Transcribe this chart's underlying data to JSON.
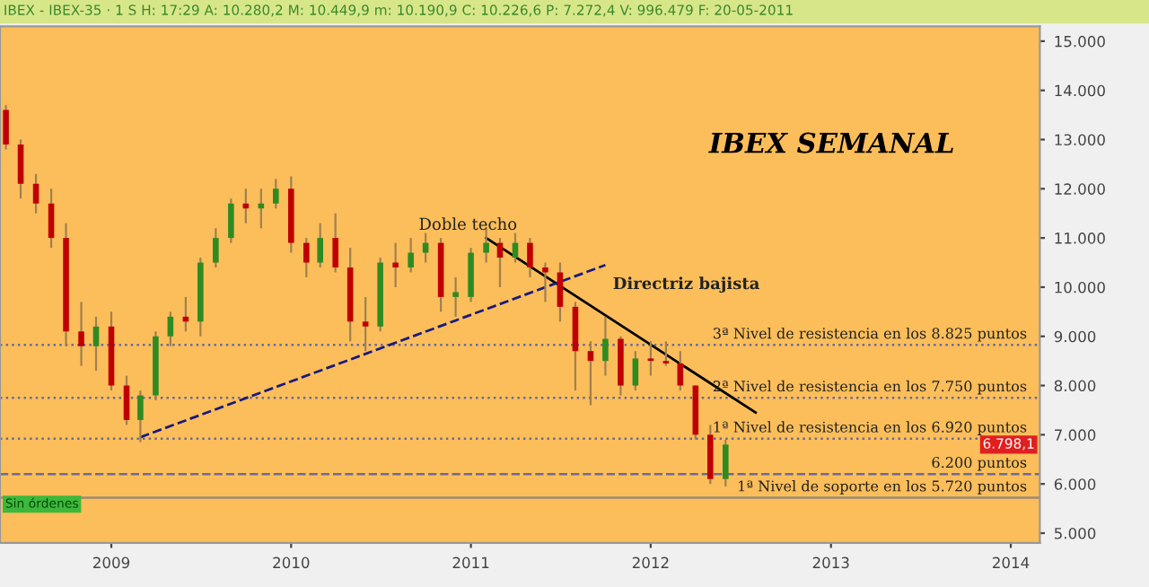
{
  "chart_data": {
    "type": "candlestick",
    "title": "IBEX SEMANAL",
    "x": [
      "2008-06",
      "2008-07",
      "2008-08",
      "2008-09",
      "2008-10",
      "2008-11",
      "2008-12",
      "2009-01",
      "2009-02",
      "2009-03",
      "2009-04",
      "2009-05",
      "2009-06",
      "2009-07",
      "2009-08",
      "2009-09",
      "2009-10",
      "2009-11",
      "2009-12",
      "2010-01",
      "2010-02",
      "2010-03",
      "2010-04",
      "2010-05",
      "2010-06",
      "2010-07",
      "2010-08",
      "2010-09",
      "2010-10",
      "2010-11",
      "2010-12",
      "2011-01",
      "2011-02",
      "2011-03",
      "2011-04",
      "2011-05",
      "2011-06",
      "2011-07",
      "2011-08",
      "2011-09",
      "2011-10",
      "2011-11",
      "2011-12",
      "2012-01",
      "2012-02",
      "2012-03",
      "2012-04",
      "2012-05",
      "2012-06"
    ],
    "ohlc": [
      [
        13600,
        13700,
        12800,
        12900
      ],
      [
        12900,
        13000,
        11800,
        12100
      ],
      [
        12100,
        12300,
        11500,
        11700
      ],
      [
        11700,
        12000,
        10800,
        11000
      ],
      [
        11000,
        11300,
        8800,
        9100
      ],
      [
        9100,
        9700,
        8400,
        8800
      ],
      [
        8800,
        9400,
        8300,
        9200
      ],
      [
        9200,
        9500,
        7900,
        8000
      ],
      [
        8000,
        8200,
        7200,
        7300
      ],
      [
        7300,
        7900,
        6850,
        7800
      ],
      [
        7800,
        9100,
        7700,
        9000
      ],
      [
        9000,
        9500,
        8800,
        9400
      ],
      [
        9400,
        9800,
        9100,
        9300
      ],
      [
        9300,
        10600,
        9000,
        10500
      ],
      [
        10500,
        11200,
        10400,
        11000
      ],
      [
        11000,
        11800,
        10900,
        11700
      ],
      [
        11700,
        12000,
        11300,
        11600
      ],
      [
        11600,
        12000,
        11200,
        11700
      ],
      [
        11700,
        12200,
        11600,
        12000
      ],
      [
        12000,
        12250,
        10700,
        10900
      ],
      [
        10900,
        11000,
        10200,
        10500
      ],
      [
        10500,
        11300,
        10400,
        11000
      ],
      [
        11000,
        11500,
        10300,
        10400
      ],
      [
        10400,
        10800,
        8900,
        9300
      ],
      [
        9300,
        9800,
        8700,
        9200
      ],
      [
        9200,
        10600,
        9100,
        10500
      ],
      [
        10500,
        10900,
        10000,
        10400
      ],
      [
        10400,
        11000,
        10300,
        10700
      ],
      [
        10700,
        11100,
        10500,
        10900
      ],
      [
        10900,
        11000,
        9500,
        9800
      ],
      [
        9800,
        10200,
        9400,
        9900
      ],
      [
        9800,
        10800,
        9700,
        10700
      ],
      [
        10700,
        11200,
        10500,
        10900
      ],
      [
        10900,
        11000,
        10000,
        10600
      ],
      [
        10600,
        11100,
        10500,
        10900
      ],
      [
        10900,
        11000,
        10200,
        10400
      ],
      [
        10400,
        10500,
        9700,
        10300
      ],
      [
        10300,
        10500,
        9300,
        9600
      ],
      [
        9600,
        9700,
        7900,
        8700
      ],
      [
        8700,
        8900,
        7600,
        8500
      ],
      [
        8500,
        9400,
        8200,
        8950
      ],
      [
        8950,
        9000,
        7800,
        8000
      ],
      [
        8000,
        8700,
        7900,
        8550
      ],
      [
        8550,
        8900,
        8200,
        8500
      ],
      [
        8500,
        8900,
        8400,
        8450
      ],
      [
        8450,
        8700,
        7900,
        8000
      ],
      [
        8000,
        8000,
        6900,
        7000
      ],
      [
        7000,
        7200,
        6000,
        6100
      ],
      [
        6100,
        6900,
        5950,
        6800
      ]
    ],
    "series": [
      {
        "type": "line",
        "line_style": "solid",
        "color": "#000000",
        "x": [
          "2011-02",
          "2012-08"
        ],
        "values": [
          11000,
          7450
        ]
      },
      {
        "type": "line",
        "line_style": "dashed",
        "color": "#1a1a80",
        "x": [
          "2009-03",
          "2011-10"
        ],
        "values": [
          6950,
          10450
        ]
      }
    ],
    "xlim": [
      "2008-05-20",
      "2014-03-01"
    ],
    "ylim": [
      4800,
      15300
    ],
    "xticks": [
      {
        "value": "2009-01-01",
        "label": "2009"
      },
      {
        "value": "2010-01-01",
        "label": "2010"
      },
      {
        "value": "2011-01-01",
        "label": "2011"
      },
      {
        "value": "2012-01-01",
        "label": "2012"
      },
      {
        "value": "2013-01-01",
        "label": "2013"
      },
      {
        "value": "2014-01-01",
        "label": "2014"
      }
    ],
    "yticks": [
      {
        "value": 5000,
        "label": "5.000"
      },
      {
        "value": 6000,
        "label": "6.000"
      },
      {
        "value": 7000,
        "label": "7.000"
      },
      {
        "value": 8000,
        "label": "8.000"
      },
      {
        "value": 9000,
        "label": "9.000"
      },
      {
        "value": 10000,
        "label": "10.000"
      },
      {
        "value": 11000,
        "label": "11.000"
      },
      {
        "value": 12000,
        "label": "12.000"
      },
      {
        "value": 13000,
        "label": "13.000"
      },
      {
        "value": 14000,
        "label": "14.000"
      },
      {
        "value": 15000,
        "label": "15.000"
      }
    ],
    "ref_lines": [
      {
        "axis": "y",
        "value": 8825,
        "label": "3ª Nivel de resistencia en los 8.825 puntos",
        "line_style": "dotted",
        "color": "#6a6a9a"
      },
      {
        "axis": "y",
        "value": 7750,
        "label": "2ª Nivel de resistencia en los 7.750 puntos",
        "line_style": "dotted",
        "color": "#6a6a9a"
      },
      {
        "axis": "y",
        "value": 6920,
        "label": "1ª Nivel de resistencia en los 6.920 puntos",
        "line_style": "dotted",
        "color": "#6a6a9a"
      },
      {
        "axis": "y",
        "value": 6200,
        "label": "6.200 puntos",
        "line_style": "dashed",
        "color": "#6a6a9a"
      },
      {
        "axis": "y",
        "value": 5720,
        "label": "1ª Nivel de soporte en los 5.720 puntos",
        "line_style": "solid",
        "color": "#9a8a7a"
      }
    ],
    "annotations": [
      "IBEX - IBEX-35 · 1 S H: 17:29 A: 10.280,2 M: 10.449,9 m: 10.190,9 C: 10.226,6 P: 7.272,4 V: 996.479 F: 20-05-2011",
      "Sin órdenes",
      "Doble techo",
      "Directriz bajista",
      {
        "text": "6.798,1",
        "x": "2014-03-01",
        "y": 6798
      }
    ],
    "grid": false,
    "legend": false
  }
}
